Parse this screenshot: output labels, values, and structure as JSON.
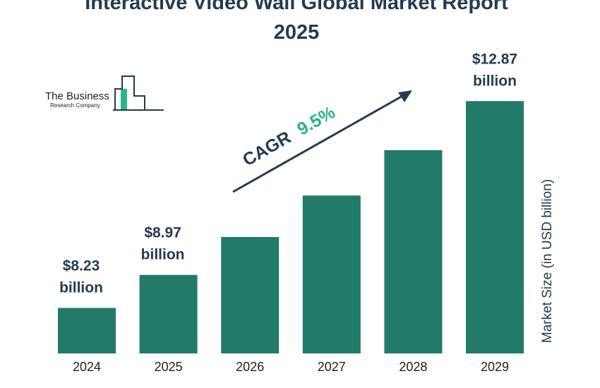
{
  "colors": {
    "bar": "#227a68",
    "title": "#243b53",
    "cagr_value": "#2bb38a",
    "logo_accent": "#2bb38a",
    "logo_stroke": "#243b53"
  },
  "logo": {
    "line1": "The Business",
    "line2": "Research Company"
  },
  "cagr": {
    "label": "CAGR",
    "value": "9.5%"
  },
  "chart_data": {
    "type": "bar",
    "title": [
      "Interactive Video Wall Global Market Report",
      "2025"
    ],
    "categories": [
      "2024",
      "2025",
      "2026",
      "2027",
      "2028",
      "2029"
    ],
    "values": [
      8.23,
      8.97,
      9.82,
      10.75,
      11.77,
      12.87
    ],
    "data_labels": [
      [
        "$8.23",
        "billion"
      ],
      [
        "$8.97",
        "billion"
      ],
      null,
      null,
      null,
      [
        "$12.87",
        "billion"
      ]
    ],
    "ylabel": "Market Size (in USD billion)",
    "grid": false,
    "legend": "none"
  }
}
